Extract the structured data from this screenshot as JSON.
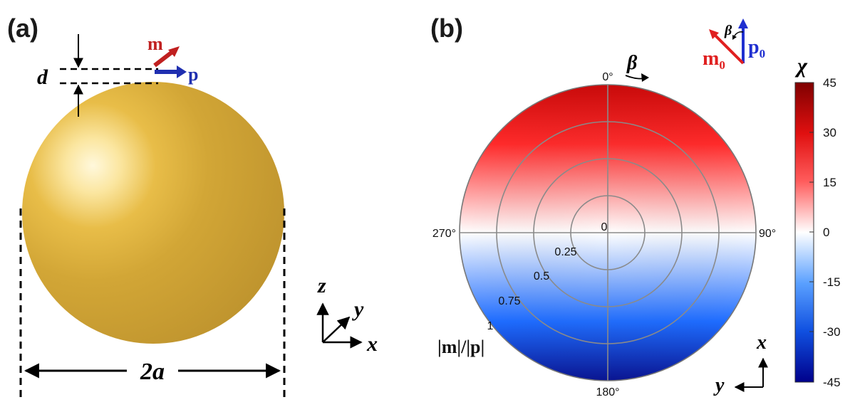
{
  "panel_a": {
    "label": "(a)",
    "d_label": "d",
    "m_label": "m",
    "p_label": "p",
    "diameter_label": "2a",
    "axes": {
      "z": "z",
      "y": "y",
      "x": "x"
    },
    "sphere_color": "#d4a632"
  },
  "panel_b": {
    "label": "(b)",
    "beta_label": "β",
    "inset": {
      "m_label": "m",
      "m_sub": "0",
      "p_label": "p",
      "p_sub": "0",
      "beta": "β"
    },
    "angle_labels": {
      "top": "0°",
      "right": "90°",
      "bottom": "180°",
      "left": "270°"
    },
    "radial_labels": [
      "0",
      "0.25",
      "0.5",
      "0.75",
      "1"
    ],
    "radial_axis_label": "|m|/|p|",
    "axes": {
      "x": "x",
      "y": "y"
    },
    "colorbar": {
      "title": "χ",
      "ticks": [
        "45",
        "30",
        "15",
        "0",
        "-15",
        "-30",
        "-45"
      ],
      "colors": {
        "max": "#7f0000",
        "mid": "#ffffff",
        "min": "#00008b",
        "red": "#ff2020",
        "blue": "#1e6cff"
      }
    }
  },
  "colors": {
    "m_arrow": "#c02020",
    "p_arrow": "#1f2fb0",
    "m0_arrow": "#e02020",
    "p0_arrow": "#1f2fd0"
  }
}
